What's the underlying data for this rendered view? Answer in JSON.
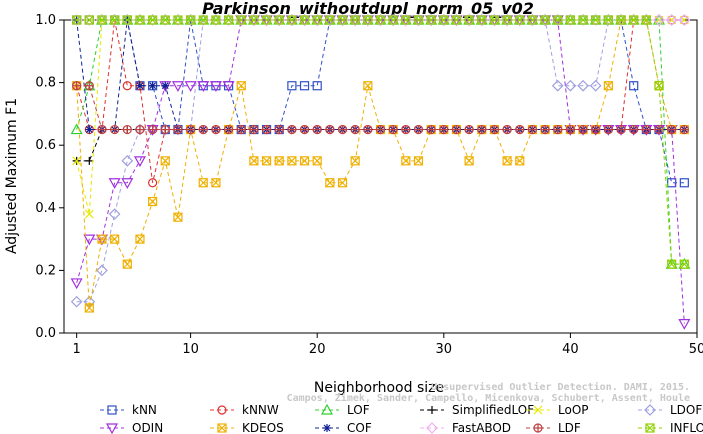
{
  "chart_data": {
    "type": "line",
    "title": "Parkinson_withoutdupl_norm_05_v02",
    "xlabel": "Neighborhood size",
    "ylabel": "Adjusted Maximum F1",
    "xlim": [
      0,
      50
    ],
    "ylim": [
      0,
      1
    ],
    "xticks": [
      1,
      10,
      20,
      30,
      40,
      50
    ],
    "yticks": [
      "0.0",
      "0.2",
      "0.4",
      "0.6",
      "0.8",
      "1.0"
    ],
    "grid": false,
    "legend_placement": "bottom",
    "x": [
      1,
      2,
      3,
      4,
      5,
      6,
      7,
      8,
      9,
      10,
      11,
      12,
      13,
      14,
      15,
      16,
      17,
      18,
      19,
      20,
      21,
      22,
      23,
      24,
      25,
      26,
      27,
      28,
      29,
      30,
      31,
      32,
      33,
      34,
      35,
      36,
      37,
      38,
      39,
      40,
      41,
      42,
      43,
      44,
      45,
      46,
      47,
      48,
      49
    ],
    "series": [
      {
        "name": "kNN",
        "color": "#3050c8",
        "marker": "square",
        "values": [
          1,
          1,
          1,
          1,
          1,
          0.79,
          0.79,
          0.65,
          0.65,
          1,
          0.79,
          0.79,
          0.79,
          0.65,
          0.65,
          0.65,
          0.65,
          0.79,
          0.79,
          0.79,
          1,
          1,
          1,
          1,
          1,
          1,
          1,
          1,
          1,
          1,
          1,
          1,
          1,
          1,
          1,
          1,
          1,
          1,
          1,
          1,
          1,
          1,
          1,
          1,
          0.79,
          0.65,
          0.65,
          0.48,
          0.48
        ]
      },
      {
        "name": "kNNW",
        "color": "#e03030",
        "marker": "circle",
        "values": [
          0.79,
          0.65,
          0.65,
          1,
          0.79,
          0.79,
          0.48,
          0.65,
          0.65,
          0.65,
          0.65,
          0.65,
          0.65,
          0.65,
          0.65,
          0.65,
          0.65,
          0.65,
          0.65,
          0.65,
          0.65,
          0.65,
          0.65,
          0.65,
          0.65,
          0.65,
          0.65,
          0.65,
          0.65,
          0.65,
          0.65,
          0.65,
          0.65,
          0.65,
          0.65,
          0.65,
          0.65,
          0.65,
          0.65,
          0.65,
          0.65,
          0.65,
          0.65,
          0.65,
          1,
          1,
          1,
          1,
          1
        ]
      },
      {
        "name": "LOF",
        "color": "#30d030",
        "marker": "triangle",
        "values": [
          0.65,
          0.79,
          1,
          1,
          1,
          1,
          1,
          1,
          1,
          1,
          1,
          1,
          1,
          1,
          1,
          1,
          1,
          1,
          1,
          1,
          1,
          1,
          1,
          1,
          1,
          1,
          1,
          1,
          1,
          1,
          1,
          1,
          1,
          1,
          1,
          1,
          1,
          1,
          1,
          1,
          1,
          1,
          1,
          1,
          1,
          1,
          1,
          0.22,
          0.22
        ]
      },
      {
        "name": "SimplifiedLOF",
        "color": "#000000",
        "marker": "plus",
        "values": [
          0.55,
          0.55,
          0.65,
          0.65,
          0.65,
          0.65,
          0.65,
          0.65,
          0.65,
          0.65,
          0.65,
          0.65,
          0.65,
          0.65,
          0.65,
          0.65,
          0.65,
          0.65,
          0.65,
          0.65,
          0.65,
          0.65,
          0.65,
          0.65,
          0.65,
          0.65,
          0.65,
          0.65,
          0.65,
          0.65,
          0.65,
          0.65,
          0.65,
          0.65,
          0.65,
          0.65,
          0.65,
          0.65,
          0.65,
          0.65,
          0.65,
          0.65,
          0.65,
          0.65,
          0.65,
          0.65,
          0.65,
          0.65,
          0.65
        ]
      },
      {
        "name": "LoOP",
        "color": "#e8e800",
        "marker": "x",
        "values": [
          0.55,
          0.38,
          1,
          1,
          1,
          1,
          1,
          1,
          1,
          1,
          1,
          1,
          1,
          1,
          1,
          1,
          1,
          1,
          1,
          1,
          1,
          1,
          1,
          1,
          1,
          1,
          1,
          1,
          1,
          1,
          1,
          1,
          1,
          1,
          1,
          1,
          1,
          1,
          1,
          1,
          1,
          1,
          1,
          1,
          1,
          1,
          1,
          1,
          1
        ]
      },
      {
        "name": "LDOF",
        "color": "#a0a0e0",
        "marker": "diamond",
        "values": [
          0.1,
          0.1,
          0.2,
          0.38,
          0.55,
          0.65,
          0.65,
          0.65,
          0.65,
          0.65,
          1,
          1,
          1,
          1,
          1,
          1,
          1,
          1,
          1,
          1,
          1,
          1,
          1,
          1,
          1,
          1,
          1,
          1,
          1,
          1,
          1,
          1,
          1,
          1,
          1,
          1,
          1,
          1,
          0.79,
          0.79,
          0.79,
          0.79,
          1,
          1,
          1,
          1,
          1,
          1,
          1
        ]
      },
      {
        "name": "ODIN",
        "color": "#a030e0",
        "marker": "triangle-down",
        "values": [
          0.16,
          0.3,
          0.3,
          0.48,
          0.48,
          0.55,
          0.65,
          0.79,
          0.79,
          0.79,
          0.79,
          0.79,
          0.79,
          1,
          1,
          1,
          1,
          1,
          1,
          1,
          1,
          1,
          1,
          1,
          1,
          1,
          1,
          1,
          1,
          1,
          1,
          1,
          1,
          1,
          1,
          1,
          1,
          1,
          1,
          0.65,
          0.65,
          0.65,
          0.65,
          0.65,
          0.65,
          0.65,
          0.65,
          0.65,
          0.03
        ]
      },
      {
        "name": "KDEOS",
        "color": "#f0b000",
        "marker": "square-x",
        "values": [
          0.79,
          0.08,
          0.3,
          0.3,
          0.22,
          0.3,
          0.42,
          0.55,
          0.37,
          0.65,
          0.48,
          0.48,
          0.65,
          0.79,
          0.55,
          0.55,
          0.55,
          0.55,
          0.55,
          0.55,
          0.48,
          0.48,
          0.55,
          0.79,
          0.65,
          0.65,
          0.55,
          0.55,
          0.65,
          0.65,
          0.65,
          0.55,
          0.65,
          0.65,
          0.55,
          0.55,
          0.65,
          0.65,
          0.65,
          0.65,
          0.65,
          0.65,
          0.79,
          1,
          1,
          1,
          0.79,
          0.65,
          0.65
        ]
      },
      {
        "name": "COF",
        "color": "#102090",
        "marker": "asterisk",
        "values": [
          1,
          0.65,
          0.65,
          0.65,
          1,
          0.79,
          0.79,
          0.79,
          0.65,
          0.65,
          0.65,
          0.65,
          0.65,
          0.65,
          0.65,
          0.65,
          0.65,
          0.65,
          0.65,
          0.65,
          0.65,
          0.65,
          0.65,
          0.65,
          0.65,
          0.65,
          0.65,
          0.65,
          0.65,
          0.65,
          0.65,
          0.65,
          0.65,
          0.65,
          0.65,
          0.65,
          0.65,
          0.65,
          0.65,
          0.65,
          0.65,
          0.65,
          0.65,
          0.65,
          0.65,
          0.65,
          0.65,
          0.65,
          0.65
        ]
      },
      {
        "name": "FastABOD",
        "color": "#f0b0f0",
        "marker": "diamond",
        "values": [
          1,
          1,
          1,
          1,
          1,
          1,
          1,
          1,
          1,
          1,
          1,
          1,
          1,
          1,
          1,
          1,
          1,
          1,
          1,
          1,
          1,
          1,
          1,
          1,
          1,
          1,
          1,
          1,
          1,
          1,
          1,
          1,
          1,
          1,
          1,
          1,
          1,
          1,
          1,
          1,
          1,
          1,
          1,
          1,
          1,
          1,
          1,
          1,
          1
        ]
      },
      {
        "name": "LDF",
        "color": "#c04040",
        "marker": "circle-plus",
        "values": [
          0.79,
          0.79,
          0.65,
          0.65,
          0.65,
          0.65,
          0.65,
          0.65,
          0.65,
          0.65,
          0.65,
          0.65,
          0.65,
          0.65,
          0.65,
          0.65,
          0.65,
          0.65,
          0.65,
          0.65,
          0.65,
          0.65,
          0.65,
          0.65,
          0.65,
          0.65,
          0.65,
          0.65,
          0.65,
          0.65,
          0.65,
          0.65,
          0.65,
          0.65,
          0.65,
          0.65,
          0.65,
          0.65,
          0.65,
          0.65,
          0.65,
          0.65,
          0.65,
          0.65,
          0.65,
          0.65,
          0.65,
          0.65,
          0.65
        ]
      },
      {
        "name": "INFLO",
        "color": "#90d000",
        "marker": "square-x",
        "values": [
          1,
          1,
          1,
          1,
          1,
          1,
          1,
          1,
          1,
          1,
          1,
          1,
          1,
          1,
          1,
          1,
          1,
          1,
          1,
          1,
          1,
          1,
          1,
          1,
          1,
          1,
          1,
          1,
          1,
          1,
          1,
          1,
          1,
          1,
          1,
          1,
          1,
          1,
          1,
          1,
          1,
          1,
          1,
          1,
          1,
          1,
          0.79,
          0.22,
          0.22
        ]
      }
    ]
  },
  "watermark": {
    "line1": "Unsupervised Outlier Detection. DAMI, 2015.",
    "line2": "Campos, Zimek, Sander, Campello, Micenkova, Schubert, Assent, Houle"
  }
}
